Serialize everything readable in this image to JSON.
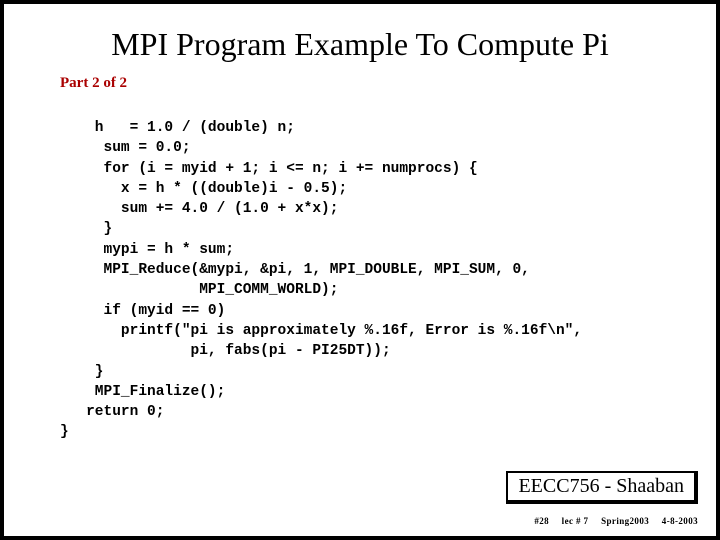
{
  "title": "MPI Program Example To Compute Pi",
  "subtitle": "Part 2 of 2",
  "code": "    h   = 1.0 / (double) n;\n     sum = 0.0;\n     for (i = myid + 1; i <= n; i += numprocs) {\n       x = h * ((double)i - 0.5);\n       sum += 4.0 / (1.0 + x*x);\n     }\n     mypi = h * sum;\n     MPI_Reduce(&mypi, &pi, 1, MPI_DOUBLE, MPI_SUM, 0,\n                MPI_COMM_WORLD);\n     if (myid == 0)\n       printf(\"pi is approximately %.16f, Error is %.16f\\n\",\n               pi, fabs(pi - PI25DT));\n    }\n    MPI_Finalize();\n   return 0;\n}",
  "footer": "EECC756 - Shaaban",
  "subfooter": {
    "slide": "#28",
    "lec": "lec # 7",
    "term": "Spring2003",
    "date": "4-8-2003"
  }
}
